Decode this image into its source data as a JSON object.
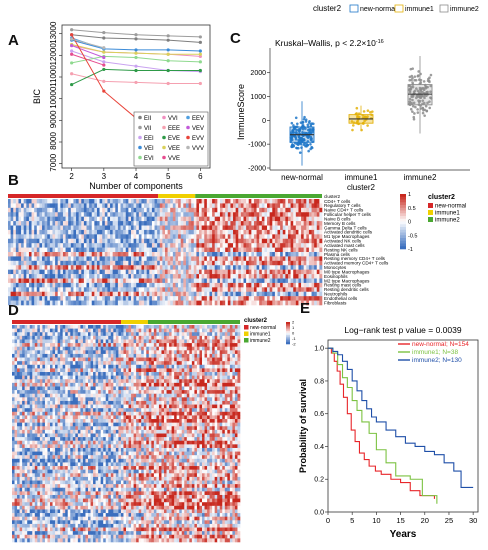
{
  "panels": {
    "a": {
      "letter": "A"
    },
    "b": {
      "letter": "B"
    },
    "c": {
      "letter": "C"
    },
    "d": {
      "letter": "D"
    },
    "e": {
      "letter": "E"
    }
  },
  "chart_data": [
    {
      "id": "bic",
      "type": "line",
      "xlabel": "Number of components",
      "ylabel": "BIC",
      "x": [
        2,
        3,
        4,
        5,
        6
      ],
      "xlim": [
        1.7,
        6.3
      ],
      "ylim": [
        6800,
        13400
      ],
      "xticks": [
        2,
        3,
        4,
        5,
        6
      ],
      "yticks": [
        7000,
        8000,
        9000,
        10000,
        11000,
        12000,
        13000
      ],
      "series": [
        {
          "name": "EII",
          "color": "#7f7f7f",
          "values": [
            12950,
            12800,
            12760,
            12700,
            12600
          ]
        },
        {
          "name": "VII",
          "color": "#9c9c9c",
          "values": [
            13180,
            13050,
            12950,
            12900,
            12850
          ]
        },
        {
          "name": "EEI",
          "color": "#c9a2f0",
          "values": [
            12200,
            11700,
            11500,
            11300,
            11250
          ]
        },
        {
          "name": "VEI",
          "color": "#3b8bd8",
          "values": [
            12700,
            12300,
            12250,
            12250,
            12200
          ]
        },
        {
          "name": "EVI",
          "color": "#8fd98f",
          "values": [
            11650,
            11950,
            11900,
            11750,
            11700
          ]
        },
        {
          "name": "VVI",
          "color": "#f08fc0",
          "values": [
            12450,
            12150,
            12100,
            12050,
            11950
          ]
        },
        {
          "name": "EEE",
          "color": "#f5a0b0",
          "values": [
            11150,
            10800,
            10750,
            10700,
            10700
          ]
        },
        {
          "name": "EVE",
          "color": "#2e9a48",
          "values": [
            10650,
            11350,
            11300,
            11300,
            11300
          ]
        },
        {
          "name": "VEE",
          "color": "#d9d05a",
          "values": [
            12500,
            12150,
            12100,
            12050,
            12050
          ]
        },
        {
          "name": "VVE",
          "color": "#e64c8f",
          "values": [
            12050,
            11550,
            null,
            null,
            null
          ]
        },
        {
          "name": "EEV",
          "color": "#4f9fe0",
          "values": [
            12800,
            12300,
            null,
            null,
            null
          ]
        },
        {
          "name": "VEV",
          "color": "#c25ad9",
          "values": [
            12450,
            11900,
            null,
            null,
            null
          ]
        },
        {
          "name": "EVV",
          "color": "#e8443a",
          "values": [
            12950,
            10350,
            9100,
            8650,
            null
          ]
        },
        {
          "name": "VVV",
          "color": "#b6b6b6",
          "values": [
            12750,
            12350,
            null,
            null,
            null
          ]
        }
      ],
      "legend_position": "bottom-right"
    },
    {
      "id": "immunescore",
      "type": "box",
      "title": "Kruskal–Wallis, p < 2.2×10",
      "title_exponent": "-16",
      "legend_title": "cluster2",
      "legend_position": "top",
      "xlabel": "cluster2",
      "ylabel": "ImmuneScore",
      "categories": [
        "new-normal",
        "immune1",
        "immune2"
      ],
      "colors": [
        "#1f77c8",
        "#e3b10b",
        "#8c8c8c"
      ],
      "ylim": [
        -2000,
        2700
      ],
      "yticks": [
        -2000,
        -1000,
        0,
        1000,
        2000
      ],
      "ytick_labels": [
        "-2000",
        "-1000",
        "0",
        "1000",
        "2000"
      ],
      "boxes": [
        {
          "min": -1900,
          "q1": -920,
          "median": -600,
          "q3": -280,
          "max": 800
        },
        {
          "min": -450,
          "q1": -120,
          "median": 60,
          "q3": 240,
          "max": 620
        },
        {
          "min": -550,
          "q1": 650,
          "median": 1100,
          "q3": 1500,
          "max": 2700
        }
      ]
    },
    {
      "id": "heatmap_b",
      "type": "heatmap",
      "legend_title": "cluster2",
      "legend_entries": [
        "new-normal",
        "immune1",
        "immune2"
      ],
      "colorbar_ticks": [
        1,
        0.5,
        0,
        -0.5,
        -1
      ],
      "colorbar_tick_labels": [
        "1",
        "0.5",
        "0",
        "-0.5",
        "-1"
      ],
      "rows": [
        "cluster2",
        "CD4+ T cells",
        "Regulatory T cells",
        "Naive CD4+ T cells",
        "Follicular helper T cells",
        "Naive B cells",
        "Memory B cells",
        "Gamma Delta T cells",
        "Activated dendritic cells",
        "M1 type Macrophages",
        "Activated NK cells",
        "Activated mast cells",
        "Resting NK cells",
        "Plasma cells",
        "Resting memory CD4+ T cells",
        "Activated memory CD4+ T cells",
        "Monocytes",
        "M0 type Macrophages",
        "Eosinophils",
        "M2 type Macrophages",
        "Resting mast cells",
        "Resting dendritic cells",
        "Neutrophils",
        "Endothelial cells",
        "Fibroblasts"
      ],
      "groups": [
        {
          "name": "new-normal",
          "n": 154,
          "color": "#d62728"
        },
        {
          "name": "immune1",
          "n": 38,
          "color": "#f0d000"
        },
        {
          "name": "immune2",
          "n": 130,
          "color": "#4aa832"
        }
      ]
    },
    {
      "id": "heatmap_d",
      "type": "heatmap",
      "legend_title": "cluster2",
      "legend_entries": [
        "new-normal",
        "immune1",
        "immune2"
      ],
      "colorbar_ticks": [
        2,
        1,
        0,
        -1,
        -2
      ],
      "colorbar_tick_labels": [
        "2",
        "1",
        "0",
        "-1",
        "-2"
      ],
      "groups": [
        {
          "name": "new-normal",
          "n": 154,
          "color": "#d62728"
        },
        {
          "name": "immune1",
          "n": 38,
          "color": "#f0d000"
        },
        {
          "name": "immune2",
          "n": 130,
          "color": "#4aa832"
        }
      ]
    },
    {
      "id": "survival",
      "type": "line",
      "title": "Log−rank test p value = 0.0039",
      "xlabel": "Years",
      "ylabel": "Probability of survival",
      "xlim": [
        0,
        31
      ],
      "ylim": [
        0,
        1.05
      ],
      "xticks": [
        0,
        5,
        10,
        15,
        20,
        25,
        30
      ],
      "yticks": [
        0.0,
        0.2,
        0.4,
        0.6,
        0.8,
        1.0
      ],
      "ytick_labels": [
        "0.0",
        "0.2",
        "0.4",
        "0.6",
        "0.8",
        "1.0"
      ],
      "legend_position": "top-right",
      "series": [
        {
          "name": "new-normal; N=154",
          "color": "#e8262a",
          "steps": [
            [
              0,
              1
            ],
            [
              0.7,
              0.97
            ],
            [
              1.3,
              0.92
            ],
            [
              1.9,
              0.86
            ],
            [
              2.5,
              0.78
            ],
            [
              3.2,
              0.7
            ],
            [
              4,
              0.6
            ],
            [
              4.8,
              0.5
            ],
            [
              5.6,
              0.43
            ],
            [
              6.5,
              0.36
            ],
            [
              7.5,
              0.32
            ],
            [
              8.5,
              0.28
            ],
            [
              9.8,
              0.25
            ],
            [
              11,
              0.23
            ],
            [
              13,
              0.2
            ],
            [
              15,
              0.18
            ],
            [
              17,
              0.13
            ],
            [
              19,
              0.1
            ],
            [
              21,
              0.1
            ],
            [
              22,
              0.08
            ]
          ]
        },
        {
          "name": "immune1; N=38",
          "color": "#7cc242",
          "steps": [
            [
              0,
              1
            ],
            [
              1,
              0.97
            ],
            [
              2,
              0.9
            ],
            [
              3,
              0.82
            ],
            [
              4,
              0.76
            ],
            [
              5,
              0.68
            ],
            [
              6,
              0.62
            ],
            [
              7,
              0.55
            ],
            [
              8.5,
              0.48
            ],
            [
              10,
              0.38
            ],
            [
              12,
              0.3
            ],
            [
              14,
              0.22
            ],
            [
              17,
              0.2
            ],
            [
              19.5,
              0.1
            ],
            [
              22,
              0.1
            ],
            [
              22.5,
              0.05
            ]
          ]
        },
        {
          "name": "immune2; N=130",
          "color": "#1f4fa8",
          "steps": [
            [
              0,
              1
            ],
            [
              1,
              0.98
            ],
            [
              2,
              0.96
            ],
            [
              3,
              0.92
            ],
            [
              4,
              0.87
            ],
            [
              5,
              0.8
            ],
            [
              6,
              0.74
            ],
            [
              7,
              0.68
            ],
            [
              8,
              0.63
            ],
            [
              9,
              0.58
            ],
            [
              10,
              0.55
            ],
            [
              12,
              0.5
            ],
            [
              14,
              0.46
            ],
            [
              16,
              0.42
            ],
            [
              18,
              0.4
            ],
            [
              20,
              0.37
            ],
            [
              22,
              0.35
            ],
            [
              24,
              0.3
            ],
            [
              26,
              0.25
            ],
            [
              27.5,
              0.15
            ],
            [
              30,
              0.15
            ]
          ]
        }
      ]
    }
  ]
}
